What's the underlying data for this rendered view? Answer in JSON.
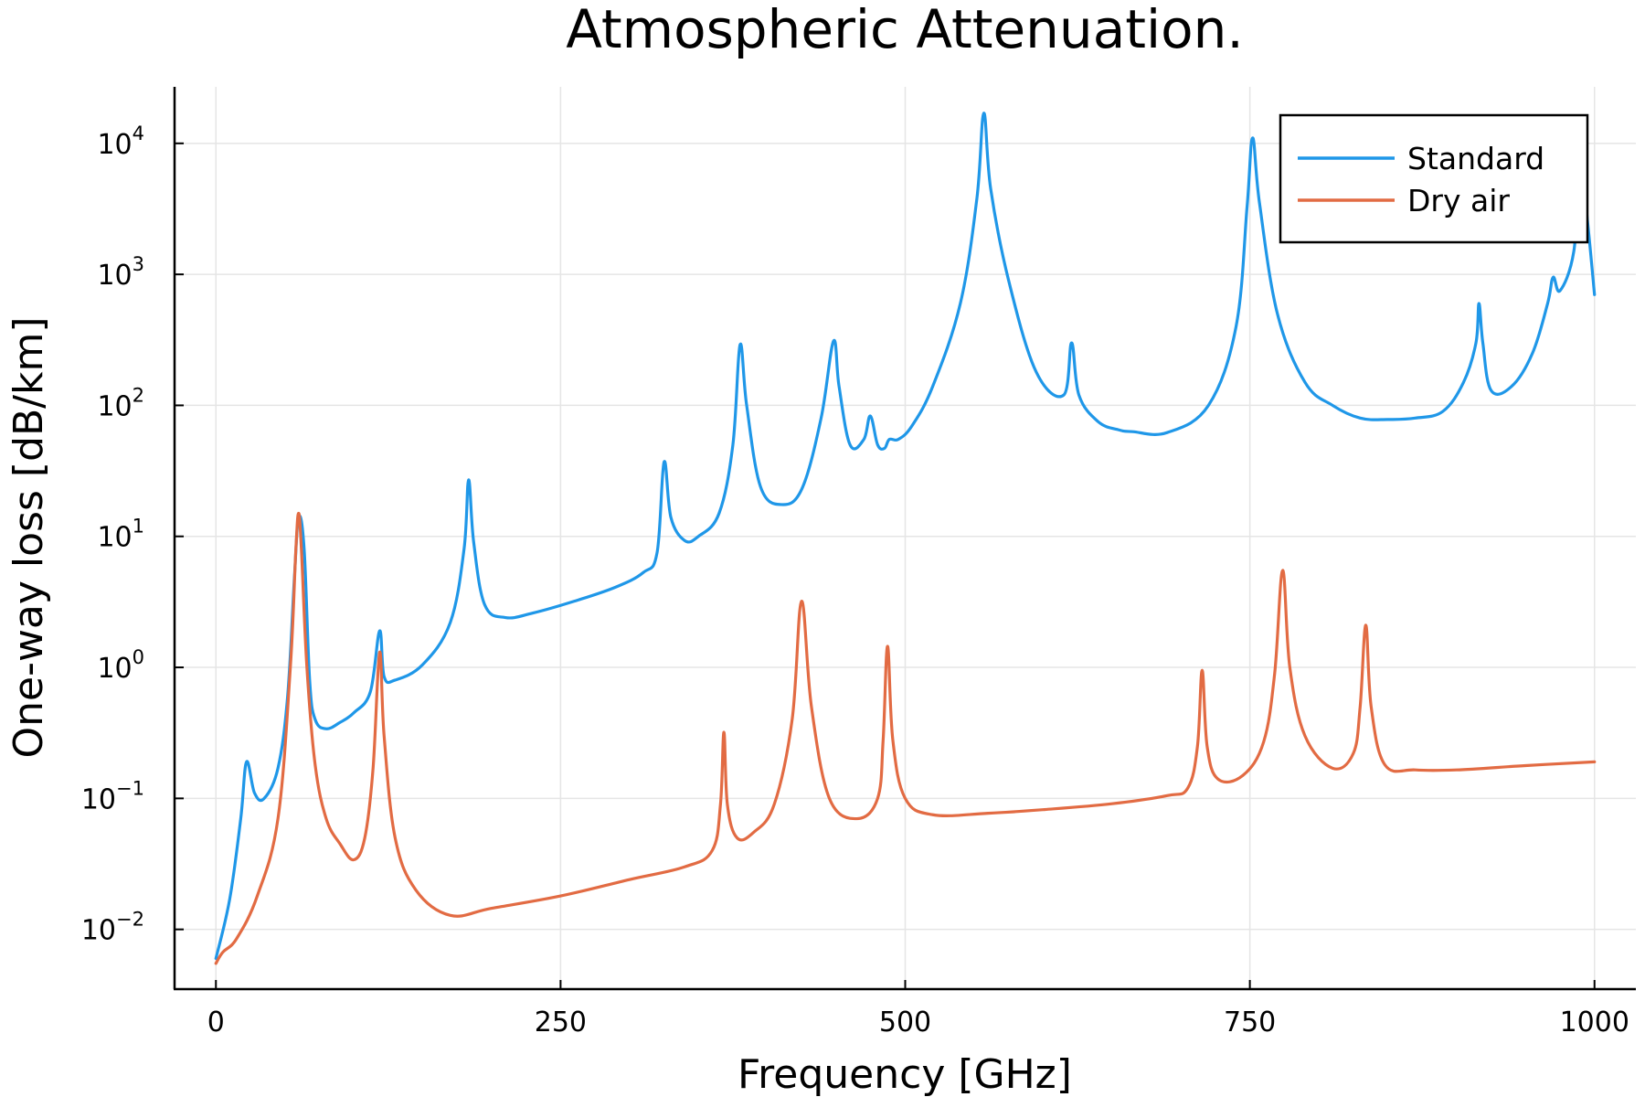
{
  "chart_data": {
    "type": "line",
    "title": "Atmospheric Attenuation.",
    "xlabel": "Frequency [GHz]",
    "ylabel": "One-way loss [dB/km]",
    "xlim": [
      -30,
      1030
    ],
    "xticks": [
      0,
      250,
      500,
      750,
      1000
    ],
    "yscale": "log",
    "ylim": [
      0.0035,
      27000
    ],
    "yticks": [
      0.01,
      0.1,
      1,
      10,
      100,
      1000,
      10000
    ],
    "ytick_labels": [
      {
        "base": "10",
        "exp": "−2"
      },
      {
        "base": "10",
        "exp": "−1"
      },
      {
        "base": "10",
        "exp": "0"
      },
      {
        "base": "10",
        "exp": "1"
      },
      {
        "base": "10",
        "exp": "2"
      },
      {
        "base": "10",
        "exp": "3"
      },
      {
        "base": "10",
        "exp": "4"
      }
    ],
    "grid": true,
    "legend_position": "top-right",
    "series": [
      {
        "name": "Standard",
        "color": "#1f97e8",
        "x": [
          0,
          10,
          18,
          22.2,
          28,
          35,
          45,
          52,
          57,
          60,
          64,
          68,
          72,
          80,
          90,
          100,
          112,
          118.75,
          122,
          130,
          150,
          170,
          180,
          183.3,
          187,
          195,
          210,
          230,
          260,
          290,
          310,
          320,
          325.1,
          330,
          340,
          350,
          365,
          375,
          380.2,
          385,
          395,
          410,
          425,
          439,
          448,
          452,
          460,
          470,
          474.7,
          480,
          485,
          488.5,
          495,
          505,
          520,
          540,
          552,
          557,
          562,
          575,
          595,
          615,
          620.7,
          626,
          640,
          655,
          665,
          690,
          720,
          740,
          748,
          752,
          757,
          770,
          790,
          810,
          830,
          850,
          870,
          890,
          905,
          914,
          916.2,
          919,
          925,
          940,
          955,
          966,
          970,
          975,
          985,
          990,
          995,
          1000
        ],
        "y": [
          0.006,
          0.017,
          0.07,
          0.19,
          0.11,
          0.1,
          0.17,
          0.6,
          5,
          14,
          8,
          0.8,
          0.4,
          0.34,
          0.38,
          0.45,
          0.65,
          1.9,
          0.85,
          0.8,
          1.05,
          2.2,
          8,
          27,
          9,
          3,
          2.4,
          2.6,
          3.2,
          4.1,
          5.3,
          7.5,
          37,
          14,
          9.3,
          10,
          15,
          50,
          290,
          100,
          24,
          17.5,
          23,
          80,
          310,
          140,
          50,
          55,
          83,
          50,
          47,
          55,
          55,
          70,
          140,
          600,
          3800,
          17000,
          4500,
          900,
          180,
          120,
          300,
          120,
          75,
          65,
          63,
          62,
          100,
          400,
          3300,
          11000,
          3500,
          500,
          150,
          100,
          80,
          78,
          80,
          90,
          150,
          300,
          600,
          300,
          130,
          140,
          250,
          600,
          950,
          750,
          1500,
          7000,
          2500,
          700
        ]
      },
      {
        "name": "Dry air",
        "color": "#e26b43",
        "x": [
          0,
          5,
          15,
          30,
          45,
          54,
          58,
          60,
          62,
          66,
          72,
          80,
          90,
          100,
          108,
          114,
          118.75,
          122,
          130,
          145,
          170,
          200,
          250,
          300,
          340,
          360,
          366,
          368.5,
          371,
          378,
          390,
          405,
          418,
          424.8,
          432,
          445,
          465,
          480,
          484,
          487.2,
          491,
          500,
          520,
          560,
          600,
          650,
          690,
          705,
          712,
          715.4,
          719,
          727,
          745,
          760,
          768,
          773.8,
          779,
          790,
          810,
          825,
          830,
          834.1,
          838,
          848,
          870,
          900,
          950,
          1000
        ],
        "y": [
          0.0055,
          0.0067,
          0.0085,
          0.018,
          0.07,
          1.0,
          8,
          15,
          8,
          1.0,
          0.18,
          0.07,
          0.045,
          0.034,
          0.05,
          0.17,
          1.3,
          0.3,
          0.05,
          0.02,
          0.0128,
          0.0145,
          0.018,
          0.024,
          0.03,
          0.04,
          0.09,
          0.32,
          0.09,
          0.05,
          0.055,
          0.09,
          0.4,
          3.2,
          0.5,
          0.1,
          0.07,
          0.1,
          0.28,
          1.45,
          0.28,
          0.1,
          0.075,
          0.077,
          0.082,
          0.091,
          0.105,
          0.12,
          0.25,
          0.95,
          0.25,
          0.14,
          0.15,
          0.27,
          0.9,
          5.5,
          1.0,
          0.3,
          0.17,
          0.22,
          0.5,
          2.1,
          0.5,
          0.18,
          0.165,
          0.165,
          0.178,
          0.19
        ]
      }
    ]
  }
}
